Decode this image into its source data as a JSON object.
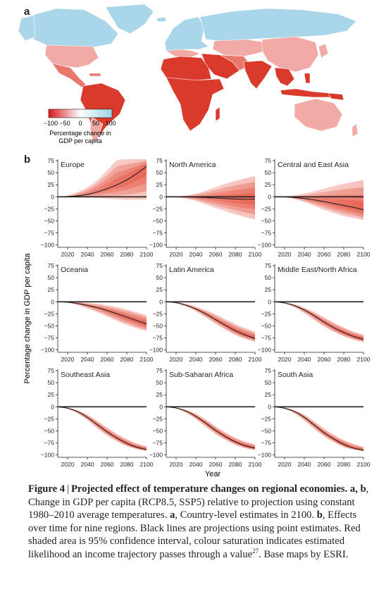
{
  "panel_a": {
    "letter": "a",
    "legend": {
      "ticks": [
        "−100",
        "−50",
        "0",
        "50",
        "100"
      ],
      "label_line1": "Percentage change in",
      "label_line2": "GDP per capita",
      "color_low": "#d7191c",
      "color_mid": "#ffffff",
      "color_high": "#9dd3e6"
    },
    "colors": {
      "ocean": "#ffffff",
      "strong_loss": "#d93a2c",
      "moderate_loss": "#e8776c",
      "mild_loss": "#f2aaa6",
      "gain": "#a9d6e8"
    }
  },
  "panel_b": {
    "letter": "b",
    "ylabel": "Percentage change in GDP per capita",
    "xlabel": "Year"
  },
  "chart_data": {
    "type": "line",
    "xlabel": "Year",
    "ylabel": "Percentage change in GDP per capita",
    "xlim": [
      2010,
      2100
    ],
    "ylim": [
      -105,
      78
    ],
    "xticks": [
      2020,
      2040,
      2060,
      2080,
      2100
    ],
    "yticks": [
      75,
      50,
      25,
      0,
      -25,
      -50,
      -75,
      -100
    ],
    "line_color": "#231f20",
    "band_color": "#e2402b",
    "panels": [
      {
        "region": "Europe",
        "x": [
          2010,
          2020,
          2030,
          2040,
          2050,
          2060,
          2070,
          2080,
          2090,
          2100
        ],
        "y": [
          0,
          0.5,
          2,
          5,
          10,
          17,
          25,
          35,
          48,
          63
        ],
        "ci_low": [
          0,
          -0.5,
          -1,
          -2,
          -3,
          -4,
          -5,
          -6,
          -6,
          -5
        ],
        "ci_high": [
          0,
          3,
          10,
          20,
          35,
          55,
          75,
          78,
          78,
          78
        ]
      },
      {
        "region": "North America",
        "x": [
          2010,
          2020,
          2030,
          2040,
          2050,
          2060,
          2070,
          2080,
          2090,
          2100
        ],
        "y": [
          0,
          0,
          -0.3,
          -0.8,
          -1.5,
          -2.5,
          -3.5,
          -4.5,
          -5,
          -5
        ],
        "ci_low": [
          0,
          -1,
          -4,
          -9,
          -16,
          -23,
          -30,
          -36,
          -42,
          -47
        ],
        "ci_high": [
          0,
          1,
          3,
          7,
          13,
          20,
          27,
          33,
          38,
          43
        ]
      },
      {
        "region": "Central and East Asia",
        "x": [
          2010,
          2020,
          2030,
          2040,
          2050,
          2060,
          2070,
          2080,
          2090,
          2100
        ],
        "y": [
          0,
          -0.3,
          -1.5,
          -3.5,
          -6.5,
          -10,
          -14,
          -18,
          -22,
          -27
        ],
        "ci_low": [
          0,
          -1,
          -5,
          -11,
          -19,
          -27,
          -34,
          -40,
          -44,
          -48
        ],
        "ci_high": [
          0,
          1,
          3,
          7,
          12,
          17,
          22,
          27,
          31,
          35
        ]
      },
      {
        "region": "Oceania",
        "x": [
          2010,
          2020,
          2030,
          2040,
          2050,
          2060,
          2070,
          2080,
          2090,
          2100
        ],
        "y": [
          0,
          -1,
          -3.5,
          -7.5,
          -12,
          -18,
          -25,
          -32,
          -39,
          -46
        ],
        "ci_low": [
          0,
          -2,
          -7,
          -14,
          -22,
          -31,
          -40,
          -48,
          -55,
          -61
        ],
        "ci_high": [
          0,
          0,
          -0.5,
          -2,
          -4,
          -7,
          -11,
          -16,
          -22,
          -28
        ]
      },
      {
        "region": "Latin America",
        "x": [
          2010,
          2020,
          2030,
          2040,
          2050,
          2060,
          2070,
          2080,
          2090,
          2100
        ],
        "y": [
          0,
          -2,
          -7,
          -15,
          -25,
          -37,
          -49,
          -60,
          -69,
          -76
        ],
        "ci_low": [
          0,
          -3,
          -10,
          -20,
          -33,
          -46,
          -58,
          -69,
          -77,
          -83
        ],
        "ci_high": [
          0,
          -1,
          -4,
          -10,
          -17,
          -26,
          -36,
          -46,
          -55,
          -62
        ]
      },
      {
        "region": "Middle East/North Africa",
        "x": [
          2010,
          2020,
          2030,
          2040,
          2050,
          2060,
          2070,
          2080,
          2090,
          2100
        ],
        "y": [
          0,
          -2.5,
          -8,
          -17,
          -29,
          -42,
          -54,
          -64,
          -72,
          -78
        ],
        "ci_low": [
          0,
          -4,
          -12,
          -24,
          -38,
          -52,
          -63,
          -72,
          -79,
          -84
        ],
        "ci_high": [
          0,
          -1,
          -5,
          -12,
          -21,
          -32,
          -43,
          -53,
          -62,
          -68
        ]
      },
      {
        "region": "Southeast Asia",
        "x": [
          2010,
          2020,
          2030,
          2040,
          2050,
          2060,
          2070,
          2080,
          2090,
          2100
        ],
        "y": [
          0,
          -3,
          -10,
          -22,
          -37,
          -52,
          -65,
          -76,
          -84,
          -89
        ],
        "ci_low": [
          0,
          -4.5,
          -14,
          -28,
          -45,
          -60,
          -72,
          -82,
          -88,
          -92
        ],
        "ci_high": [
          0,
          -2,
          -7,
          -16,
          -29,
          -43,
          -56,
          -67,
          -76,
          -82
        ]
      },
      {
        "region": "Sub-Saharan Africa",
        "x": [
          2010,
          2020,
          2030,
          2040,
          2050,
          2060,
          2070,
          2080,
          2090,
          2100
        ],
        "y": [
          0,
          -2.5,
          -9,
          -20,
          -34,
          -49,
          -62,
          -73,
          -81,
          -86
        ],
        "ci_low": [
          0,
          -4,
          -13,
          -26,
          -42,
          -57,
          -69,
          -79,
          -86,
          -90
        ],
        "ci_high": [
          0,
          -1.5,
          -6,
          -14,
          -26,
          -40,
          -53,
          -64,
          -72,
          -78
        ]
      },
      {
        "region": "South Asia",
        "x": [
          2010,
          2020,
          2030,
          2040,
          2050,
          2060,
          2070,
          2080,
          2090,
          2100
        ],
        "y": [
          0,
          -3,
          -10,
          -22,
          -38,
          -54,
          -67,
          -78,
          -86,
          -90
        ],
        "ci_low": [
          0,
          -4.5,
          -14,
          -29,
          -46,
          -62,
          -74,
          -84,
          -89,
          -93
        ],
        "ci_high": [
          0,
          -2,
          -7,
          -16,
          -30,
          -45,
          -58,
          -69,
          -77,
          -83
        ]
      }
    ]
  },
  "caption": {
    "title_prefix": "Figure 4",
    "title": "Projected effect of temperature changes on regional economies.",
    "a_b": "a, b",
    "text1": ", Change in GDP per capita (RCP8.5, SSP5) relative to projection using constant 1980–2010 average temperatures. ",
    "a": "a",
    "text2": ", Country-level estimates in 2100. ",
    "b": "b",
    "text3": ", Effects over time for nine regions. Black lines are projections using point estimates. Red shaded area is 95% confidence interval, colour saturation indicates estimated likelihood an income trajectory passes through a value",
    "ref": "27",
    "text4": ". Base maps by ESRI."
  }
}
